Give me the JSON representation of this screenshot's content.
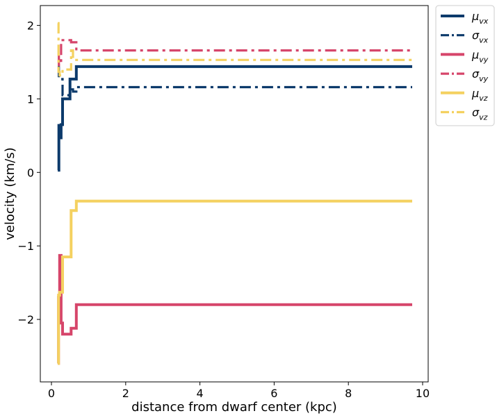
{
  "chart_data": {
    "type": "line",
    "xlabel": "distance from dwarf center (kpc)",
    "ylabel": "velocity (km/s)",
    "xlim": [
      -0.3,
      10.15
    ],
    "ylim": [
      -2.85,
      2.27
    ],
    "x_ticks": [
      0,
      2,
      4,
      6,
      8,
      10
    ],
    "y_ticks": [
      -2,
      -1,
      0,
      1,
      2
    ],
    "x_tick_labels": [
      "0",
      "2",
      "4",
      "6",
      "8",
      "10"
    ],
    "y_tick_labels": [
      "−2",
      "−1",
      "0",
      "1",
      "2"
    ],
    "grid": false,
    "legend_position": "outside-top-right",
    "series": [
      {
        "name": "μ_{v_x}",
        "legend_symbol": "μ",
        "legend_sub": "vx",
        "color": "#0c3a6b",
        "style": "solid",
        "x": [
          0.17,
          0.2,
          0.2,
          0.23,
          0.23,
          0.26,
          0.26,
          0.3,
          0.3,
          0.5,
          0.5,
          0.58,
          0.58,
          0.67,
          0.67,
          9.72
        ],
        "y": [
          0.03,
          0.03,
          0.64,
          0.64,
          0.47,
          0.47,
          0.65,
          0.65,
          1.0,
          1.0,
          1.27,
          1.27,
          1.27,
          1.27,
          1.44,
          1.44
        ]
      },
      {
        "name": "σ_{v_x}",
        "legend_symbol": "σ",
        "legend_sub": "vx",
        "color": "#0c3a6b",
        "style": "dashdot",
        "x": [
          0.17,
          0.2,
          0.2,
          0.3,
          0.3,
          0.5,
          0.5,
          0.58,
          0.58,
          0.67,
          0.67,
          9.72
        ],
        "y": [
          1.43,
          1.43,
          1.27,
          1.27,
          1.05,
          1.05,
          1.13,
          1.13,
          1.1,
          1.1,
          1.16,
          1.16
        ]
      },
      {
        "name": "μ_{v_y}",
        "legend_symbol": "μ",
        "legend_sub": "vy",
        "color": "#d6456a",
        "style": "solid",
        "x": [
          0.17,
          0.19,
          0.19,
          0.22,
          0.22,
          0.26,
          0.26,
          0.3,
          0.3,
          0.53,
          0.53,
          0.67,
          0.67,
          9.72
        ],
        "y": [
          -2.6,
          -2.6,
          -1.7,
          -1.7,
          -1.13,
          -1.13,
          -2.05,
          -2.05,
          -2.2,
          -2.2,
          -2.12,
          -2.12,
          -1.8,
          -1.8
        ]
      },
      {
        "name": "σ_{v_y}",
        "legend_symbol": "σ",
        "legend_sub": "vy",
        "color": "#d6456a",
        "style": "dashdot",
        "x": [
          0.17,
          0.2,
          0.2,
          0.26,
          0.26,
          0.3,
          0.3,
          0.53,
          0.53,
          0.67,
          0.67,
          9.72
        ],
        "y": [
          1.58,
          1.58,
          1.46,
          1.46,
          1.8,
          1.8,
          1.8,
          1.8,
          1.77,
          1.77,
          1.66,
          1.66
        ]
      },
      {
        "name": "μ_{v_z}",
        "legend_symbol": "μ",
        "legend_sub": "vz",
        "color": "#f4d160",
        "style": "solid",
        "x": [
          0.17,
          0.19,
          0.19,
          0.22,
          0.22,
          0.3,
          0.3,
          0.53,
          0.53,
          0.67,
          0.67,
          9.72
        ],
        "y": [
          -2.6,
          -2.6,
          -1.67,
          -1.67,
          -1.63,
          -1.63,
          -1.15,
          -1.15,
          -0.52,
          -0.52,
          -0.39,
          -0.39
        ]
      },
      {
        "name": "σ_{v_z}",
        "legend_symbol": "σ",
        "legend_sub": "vz",
        "color": "#f4d160",
        "style": "dashdot",
        "x": [
          0.17,
          0.19,
          0.19,
          0.22,
          0.22,
          0.3,
          0.3,
          0.53,
          0.53,
          0.58,
          0.58,
          9.72
        ],
        "y": [
          2.03,
          2.03,
          1.37,
          1.37,
          1.32,
          1.32,
          1.4,
          1.4,
          1.66,
          1.66,
          1.53,
          1.53
        ]
      }
    ]
  }
}
